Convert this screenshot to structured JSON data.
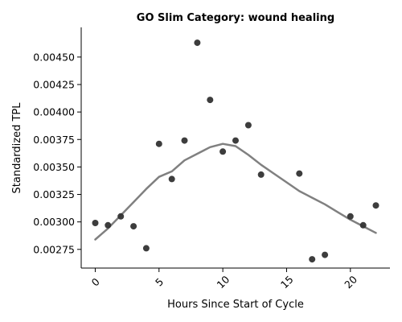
{
  "chart_data": {
    "type": "scatter",
    "title": "GO Slim Category: wound healing",
    "xlabel": "Hours Since Start of Cycle",
    "ylabel": "Standardized TPL",
    "xlim": [
      -1.1,
      23.1
    ],
    "ylim": [
      0.00258,
      0.00477
    ],
    "xticks": [
      0,
      5,
      10,
      15,
      20
    ],
    "xtick_labels": [
      "0",
      "5",
      "10",
      "15",
      "20"
    ],
    "yticks": [
      0.00275,
      0.003,
      0.00325,
      0.0035,
      0.00375,
      0.004,
      0.00425,
      0.0045
    ],
    "ytick_labels": [
      "0.00275",
      "0.00300",
      "0.00325",
      "0.00350",
      "0.00375",
      "0.00400",
      "0.00425",
      "0.00450"
    ],
    "grid": false,
    "legend": "none",
    "colors": {
      "points": "#333333",
      "trend": "#808080",
      "axis": "#000000"
    },
    "points": {
      "x": [
        0,
        1,
        2,
        3,
        4,
        5,
        6,
        7,
        8,
        9,
        10,
        11,
        12,
        13,
        16,
        17,
        18,
        20,
        21,
        22
      ],
      "y": [
        0.00299,
        0.00297,
        0.00305,
        0.00296,
        0.00276,
        0.00371,
        0.00339,
        0.00374,
        0.00463,
        0.00411,
        0.00364,
        0.00374,
        0.00388,
        0.00343,
        0.00344,
        0.00266,
        0.0027,
        0.00305,
        0.00297,
        0.00315
      ]
    },
    "trend": {
      "x": [
        0,
        1,
        2,
        3,
        4,
        5,
        6,
        7,
        8,
        9,
        10,
        11,
        12,
        13,
        14,
        15,
        16,
        17,
        18,
        19,
        20,
        21,
        22
      ],
      "y": [
        0.00284,
        0.00294,
        0.00306,
        0.00318,
        0.0033,
        0.00341,
        0.00346,
        0.00356,
        0.00362,
        0.00368,
        0.00371,
        0.00369,
        0.00361,
        0.00352,
        0.00344,
        0.00336,
        0.00328,
        0.00322,
        0.00316,
        0.00309,
        0.00302,
        0.00296,
        0.0029
      ]
    }
  }
}
